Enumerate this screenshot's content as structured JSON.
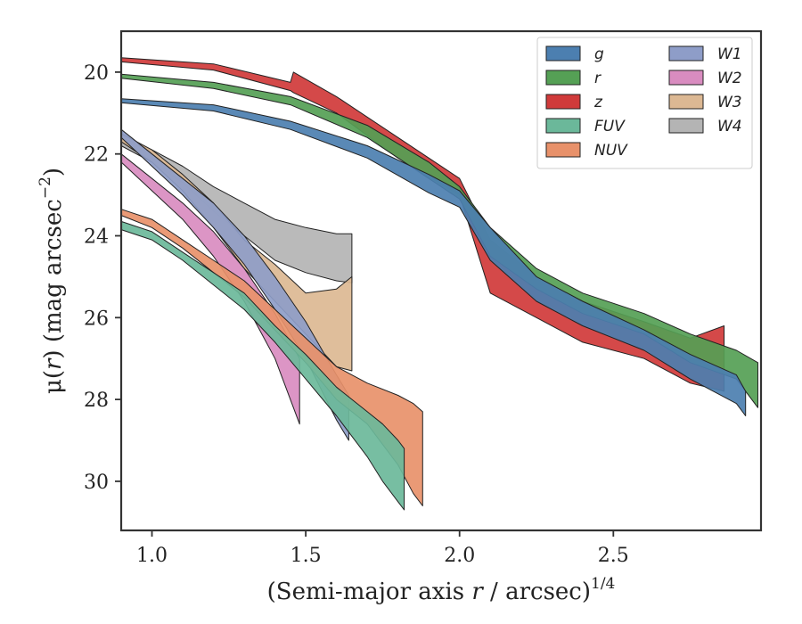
{
  "chart_data": {
    "type": "area",
    "xlabel_main": "(Semi-major axis ",
    "xlabel_var": "r",
    "xlabel_mid": " / arcsec)",
    "xlabel_sup": "1/4",
    "ylabel_main": "μ(",
    "ylabel_var": "r",
    "ylabel_mid": ") (mag arcsec",
    "ylabel_sup": "−2",
    "ylabel_end": ")",
    "xlim": [
      0.9,
      2.98
    ],
    "ylim": [
      31.2,
      19.0
    ],
    "y_inverted": true,
    "xticks": [
      1.0,
      1.5,
      2.0,
      2.5
    ],
    "xtick_labels": [
      "1.0",
      "1.5",
      "2.0",
      "2.5"
    ],
    "yticks": [
      20,
      22,
      24,
      26,
      28,
      30
    ],
    "ytick_labels": [
      "20",
      "22",
      "24",
      "26",
      "28",
      "30"
    ],
    "grid": false,
    "legend_position": "top-right",
    "legend_columns": 2,
    "series": [
      {
        "name": "g",
        "color": "#4c7fb0",
        "x": [
          0.9,
          1.2,
          1.45,
          1.7,
          1.9,
          2.0,
          2.1,
          2.25,
          2.4,
          2.6,
          2.75,
          2.9,
          2.93
        ],
        "y1": [
          20.65,
          20.8,
          21.2,
          21.8,
          22.5,
          22.9,
          23.8,
          25.0,
          25.6,
          26.3,
          26.9,
          27.4,
          27.8
        ],
        "y2": [
          20.75,
          20.95,
          21.4,
          22.1,
          22.95,
          23.3,
          24.6,
          25.6,
          26.2,
          26.8,
          27.5,
          28.1,
          28.4
        ]
      },
      {
        "name": "r",
        "color": "#55a055",
        "x": [
          0.9,
          1.2,
          1.45,
          1.7,
          1.9,
          2.0,
          2.1,
          2.25,
          2.4,
          2.6,
          2.75,
          2.9,
          2.97
        ],
        "y1": [
          20.05,
          20.25,
          20.6,
          21.3,
          22.2,
          22.8,
          23.8,
          24.8,
          25.4,
          25.9,
          26.4,
          26.8,
          27.1
        ],
        "y2": [
          20.15,
          20.4,
          20.8,
          21.6,
          22.6,
          23.1,
          24.5,
          25.3,
          25.9,
          26.4,
          27.1,
          27.5,
          28.2
        ]
      },
      {
        "name": "z",
        "color": "#d03a3a",
        "x": [
          0.9,
          1.2,
          1.45,
          1.46,
          1.6,
          1.8,
          2.0,
          2.1,
          2.25,
          2.4,
          2.6,
          2.75,
          2.86
        ],
        "y1": [
          19.65,
          19.8,
          20.25,
          20.0,
          20.6,
          21.6,
          22.6,
          24.1,
          25.0,
          25.6,
          26.1,
          26.5,
          26.2
        ],
        "y2": [
          19.75,
          19.95,
          20.45,
          20.5,
          21.0,
          22.1,
          23.0,
          25.4,
          26.0,
          26.6,
          27.0,
          27.6,
          27.8
        ]
      },
      {
        "name": "FUV",
        "color": "#6bb89a",
        "x": [
          0.9,
          1.0,
          1.1,
          1.2,
          1.3,
          1.4,
          1.5,
          1.6,
          1.7,
          1.75,
          1.8,
          1.82
        ],
        "y1": [
          23.65,
          23.9,
          24.4,
          24.9,
          25.4,
          26.2,
          26.9,
          27.7,
          28.3,
          28.6,
          29.0,
          29.2
        ],
        "y2": [
          23.85,
          24.1,
          24.6,
          25.2,
          25.8,
          26.6,
          27.5,
          28.4,
          29.4,
          30.0,
          30.5,
          30.7
        ]
      },
      {
        "name": "NUV",
        "color": "#e8916a",
        "x": [
          0.9,
          1.0,
          1.1,
          1.2,
          1.3,
          1.4,
          1.5,
          1.6,
          1.7,
          1.8,
          1.85,
          1.88
        ],
        "y1": [
          23.35,
          23.6,
          24.1,
          24.6,
          25.1,
          25.8,
          26.5,
          27.2,
          27.6,
          27.9,
          28.1,
          28.3
        ],
        "y2": [
          23.5,
          23.8,
          24.3,
          24.9,
          25.5,
          26.3,
          27.1,
          28.0,
          28.6,
          29.6,
          30.3,
          30.6
        ]
      },
      {
        "name": "W1",
        "color": "#8e9dc8",
        "x": [
          0.9,
          1.0,
          1.1,
          1.2,
          1.3,
          1.4,
          1.5,
          1.6,
          1.64
        ],
        "y1": [
          21.4,
          22.0,
          22.6,
          23.2,
          24.0,
          25.0,
          26.1,
          27.4,
          27.9
        ],
        "y2": [
          21.6,
          22.3,
          23.0,
          23.8,
          24.7,
          25.8,
          27.0,
          28.5,
          29.0
        ]
      },
      {
        "name": "W2",
        "color": "#d98cc0",
        "x": [
          0.9,
          1.0,
          1.1,
          1.2,
          1.3,
          1.4,
          1.48
        ],
        "y1": [
          22.0,
          22.6,
          23.2,
          23.9,
          24.8,
          25.9,
          27.0
        ],
        "y2": [
          22.2,
          22.9,
          23.6,
          24.5,
          25.6,
          27.0,
          28.6
        ]
      },
      {
        "name": "W3",
        "color": "#dcb893",
        "x": [
          0.9,
          1.0,
          1.1,
          1.2,
          1.3,
          1.4,
          1.5,
          1.6,
          1.65
        ],
        "y1": [
          21.5,
          21.9,
          22.5,
          23.2,
          24.1,
          24.7,
          25.4,
          25.3,
          25.0
        ],
        "y2": [
          21.7,
          22.2,
          22.9,
          23.8,
          24.8,
          25.6,
          26.4,
          27.2,
          27.3
        ]
      },
      {
        "name": "W4",
        "color": "#b4b4b4",
        "x": [
          0.9,
          1.0,
          1.1,
          1.2,
          1.3,
          1.4,
          1.5,
          1.6,
          1.65
        ],
        "y1": [
          21.6,
          21.9,
          22.3,
          22.8,
          23.2,
          23.6,
          23.8,
          23.95,
          23.95
        ],
        "y2": [
          21.8,
          22.2,
          22.7,
          23.4,
          24.0,
          24.6,
          24.9,
          25.1,
          25.15
        ]
      }
    ]
  }
}
